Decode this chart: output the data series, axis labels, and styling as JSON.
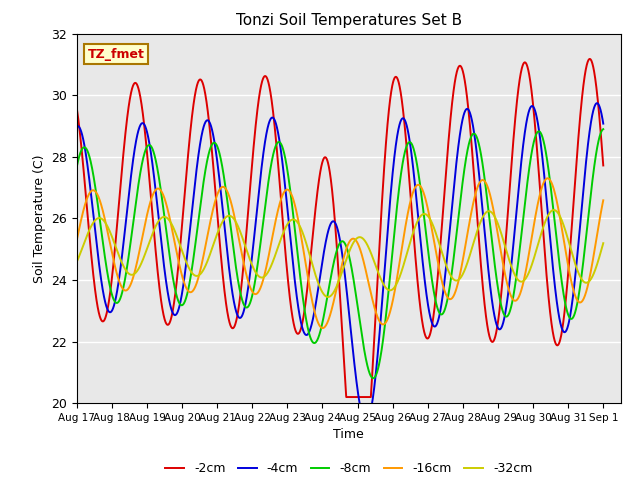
{
  "title": "Tonzi Soil Temperatures Set B",
  "xlabel": "Time",
  "ylabel": "Soil Temperature (C)",
  "ylim": [
    20,
    32
  ],
  "xlim": [
    0,
    15.5
  ],
  "xtick_labels": [
    "Aug 17",
    "Aug 18",
    "Aug 19",
    "Aug 20",
    "Aug 21",
    "Aug 22",
    "Aug 23",
    "Aug 24",
    "Aug 25",
    "Aug 26",
    "Aug 27",
    "Aug 28",
    "Aug 29",
    "Aug 30",
    "Aug 31",
    "Sep 1"
  ],
  "xtick_positions": [
    0,
    1,
    2,
    3,
    4,
    5,
    6,
    7,
    8,
    9,
    10,
    11,
    12,
    13,
    14,
    15
  ],
  "ytick_labels": [
    "20",
    "22",
    "24",
    "26",
    "28",
    "30",
    "32"
  ],
  "ytick_positions": [
    20,
    22,
    24,
    26,
    28,
    30,
    32
  ],
  "annotation_text": "TZ_fmet",
  "lines": [
    {
      "label": "-2cm",
      "color": "#dd0000",
      "linewidth": 1.4
    },
    {
      "label": "-4cm",
      "color": "#0000dd",
      "linewidth": 1.4
    },
    {
      "label": "-8cm",
      "color": "#00cc00",
      "linewidth": 1.4
    },
    {
      "label": "-16cm",
      "color": "#ff9900",
      "linewidth": 1.4
    },
    {
      "label": "-32cm",
      "color": "#cccc00",
      "linewidth": 1.4
    }
  ],
  "background_color": "#e8e8e8",
  "legend_ncol": 5
}
